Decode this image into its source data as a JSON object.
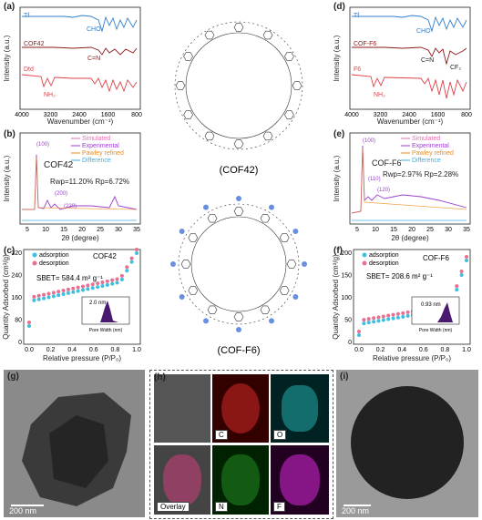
{
  "panels": {
    "a": {
      "label": "(a)",
      "xlabel": "Wavenumber (cm⁻¹)",
      "ylabel": "Intensity (a.u.)",
      "xticks": [
        "4000",
        "3200",
        "2400",
        "1600",
        "800"
      ],
      "series": [
        "Tf",
        "COF42",
        "Dtd"
      ],
      "annots": [
        "CHO",
        "C=N",
        "NH₂"
      ]
    },
    "b": {
      "label": "(b)",
      "xlabel": "2θ (degree)",
      "ylabel": "Intensity (a.u.)",
      "xticks": [
        "5",
        "10",
        "15",
        "20",
        "25",
        "30",
        "35"
      ],
      "legend": [
        "Simulated",
        "Experimental",
        "Pawley refined",
        "Difference"
      ],
      "name": "COF42",
      "stats": "Rwp=11.20% Rp=6.72%",
      "peaks": [
        "(100)",
        "(200)",
        "(220)"
      ]
    },
    "c": {
      "label": "(c)",
      "xlabel": "Relative pressure (P/P₀)",
      "ylabel": "Quantity Adsorbed (cm³/g)",
      "yticks": [
        "0",
        "80",
        "160",
        "240",
        "320"
      ],
      "xticks": [
        "0.0",
        "0.2",
        "0.4",
        "0.6",
        "0.8",
        "1.0"
      ],
      "legend": [
        "adsorption",
        "desorption"
      ],
      "name": "COF42",
      "sbet": "SBET= 584.4 m² g⁻¹",
      "pore": "2.0 nm",
      "inset_xlabel": "Pore Width (nm)",
      "inset_xticks": [
        "4",
        "3",
        "2",
        "1",
        "0"
      ]
    },
    "d": {
      "label": "(d)",
      "xlabel": "Wavenumber (cm⁻¹)",
      "ylabel": "Intensity (a.u.)",
      "xticks": [
        "4000",
        "3200",
        "2400",
        "1600",
        "800"
      ],
      "series": [
        "Tf",
        "COF-F6",
        "F6"
      ],
      "annots": [
        "CHO",
        "C=N",
        "CF₂",
        "NH₂"
      ]
    },
    "e": {
      "label": "(e)",
      "xlabel": "2θ (degree)",
      "ylabel": "Intensity (a.u.)",
      "xticks": [
        "5",
        "10",
        "15",
        "20",
        "25",
        "30",
        "35"
      ],
      "legend": [
        "Simulated",
        "Experimental",
        "Pawley refined",
        "Difference"
      ],
      "name": "COF-F6",
      "stats": "Rwp=2.97% Rp=2.28%",
      "peaks": [
        "(100)",
        "(110)",
        "(120)"
      ]
    },
    "f": {
      "label": "(f)",
      "xlabel": "Relative pressure (P/P₀)",
      "ylabel": "Quantity Adsorbed (cm³/g)",
      "yticks": [
        "0",
        "50",
        "100",
        "150",
        "200"
      ],
      "xticks": [
        "0.0",
        "0.2",
        "0.4",
        "0.6",
        "0.8",
        "1.0"
      ],
      "legend": [
        "adsorption",
        "desorption"
      ],
      "name": "COF-F6",
      "sbet": "SBET= 208.6 m² g⁻¹",
      "pore": "0.93 nm",
      "inset_xlabel": "Pore Width (nm)",
      "inset_xticks": [
        "4",
        "3",
        "2",
        "1",
        "0"
      ]
    },
    "g": {
      "label": "(g)",
      "scale": "200 nm"
    },
    "h": {
      "label": "(h)",
      "maps": [
        "C",
        "O",
        "Overlay",
        "N",
        "F"
      ]
    },
    "i": {
      "label": "(i)",
      "scale": "200 nm"
    },
    "struct1": {
      "caption": "(COF42)"
    },
    "struct2": {
      "caption": "(COF-F6)"
    }
  },
  "colors": {
    "tf": "#2f7fd1",
    "cof": "#8b1a1a",
    "dtd": "#e0404a",
    "sim": "#e66fb0",
    "exp": "#9b3fd0",
    "pawley": "#f08c1a",
    "diff": "#40b0e0",
    "ads": "#3fc0e0",
    "des": "#e87090",
    "inset": "#4a1a70"
  }
}
